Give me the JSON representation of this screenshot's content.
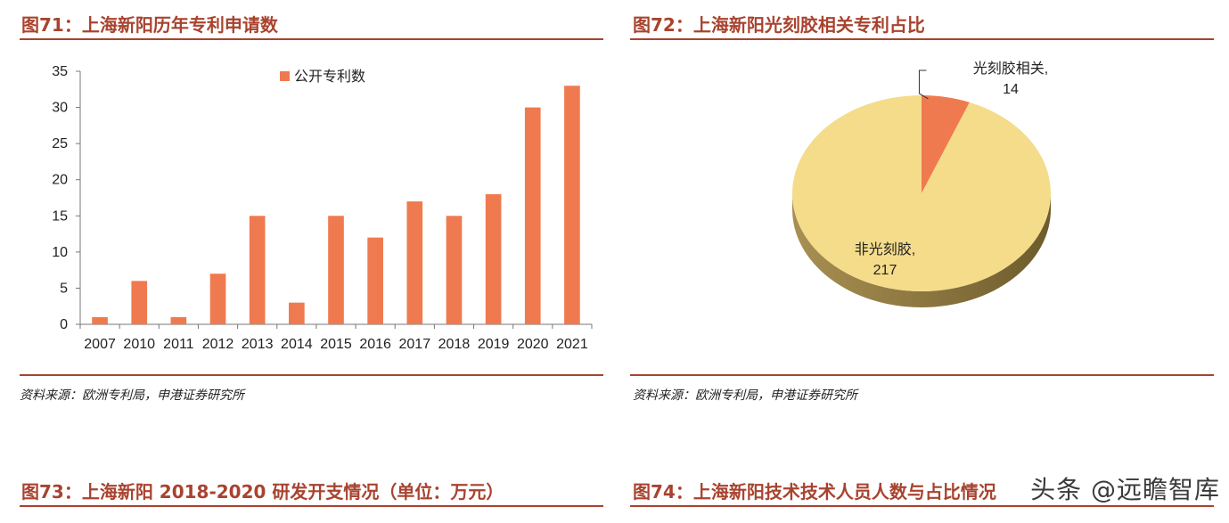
{
  "fig71": {
    "title": "图71：上海新阳历年专利申请数",
    "source": "资料来源：欧洲专利局，申港证券研究所"
  },
  "fig72": {
    "title": "图72：上海新阳光刻胶相关专利占比",
    "source": "资料来源：欧洲专利局，申港证券研究所"
  },
  "fig73": {
    "title": "图73：上海新阳 2018-2020 研发开支情况（单位：万元）"
  },
  "fig74": {
    "title": "图74：上海新阳技术技术人员人数与占比情况"
  },
  "watermark": "头条 @远瞻智库",
  "chart_data": [
    {
      "type": "bar",
      "categories": [
        "2007",
        "2010",
        "2011",
        "2012",
        "2013",
        "2014",
        "2015",
        "2016",
        "2017",
        "2018",
        "2019",
        "2020",
        "2021"
      ],
      "series": [
        {
          "name": "公开专利数",
          "values": [
            1,
            6,
            1,
            7,
            15,
            3,
            15,
            12,
            17,
            15,
            18,
            30,
            33
          ]
        }
      ],
      "ylim": [
        0,
        35
      ],
      "yticks": [
        0,
        5,
        10,
        15,
        20,
        25,
        30,
        35
      ],
      "grid": false,
      "legend": "top",
      "color": "#f07a4f"
    },
    {
      "type": "pie",
      "slices": [
        {
          "label": "光刻胶相关,",
          "value": 14,
          "value_label": "14",
          "color": "#f07a4f"
        },
        {
          "label": "非光刻胶,",
          "value": 217,
          "value_label": "217",
          "color": "#f4dc8a"
        }
      ],
      "style": "3d"
    }
  ]
}
